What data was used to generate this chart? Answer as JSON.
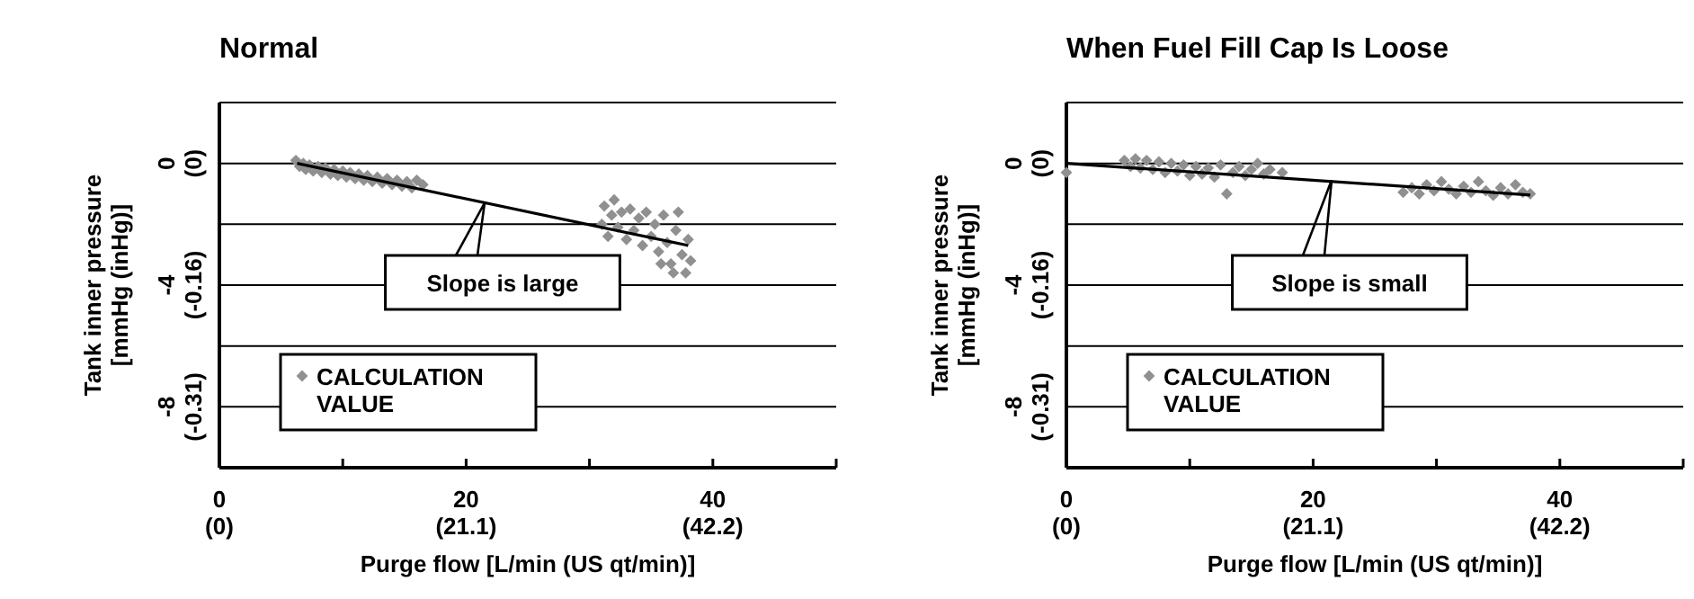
{
  "chart_data": [
    {
      "type": "scatter",
      "title": "Normal",
      "xlabel": "Purge flow [L/min (US qt/min)]",
      "ylabel": "Tank inner pressure\n[mmHg (inHg)]",
      "xlim": [
        0,
        50
      ],
      "ylim": [
        -10,
        2
      ],
      "xticks": [
        0,
        {
          "value": 10,
          "label": null
        },
        20,
        {
          "value": 30,
          "label": null
        },
        40,
        {
          "value": 50,
          "label": null
        }
      ],
      "x2lim": [
        0,
        52.75
      ],
      "x2ticks": [
        {
          "value": 0,
          "label": "(0)"
        },
        {
          "value": 21.1,
          "label": "(21.1)"
        },
        {
          "value": 42.2,
          "label": "(42.2)"
        }
      ],
      "yticks": [
        {
          "value": 2,
          "label": null
        },
        0,
        {
          "value": -2,
          "label": null
        },
        -4,
        {
          "value": -6,
          "label": null
        },
        -8
      ],
      "y2lim": [
        -0.3937,
        0.0787
      ],
      "y2ticks": [
        {
          "value": 0,
          "label": "(0)"
        },
        {
          "value": -0.1575,
          "label": "(-0.16)"
        },
        {
          "value": -0.315,
          "label": "(-0.31)"
        }
      ],
      "grid": "y",
      "legend": "bottom left",
      "annotations": [
        {
          "text": "Slope is large",
          "x": 21.5,
          "y": -1.3
        }
      ],
      "series": [
        {
          "name": "CALCULATION VALUE",
          "color": "#909090",
          "marker": "diamond",
          "x": [
            6.2,
            6.5,
            6.8,
            7.0,
            7.3,
            7.6,
            8.0,
            8.3,
            8.6,
            9.0,
            9.3,
            9.6,
            10.0,
            10.3,
            10.6,
            11.0,
            11.3,
            11.7,
            12.0,
            12.4,
            12.8,
            13.2,
            13.6,
            14.0,
            14.4,
            14.8,
            15.2,
            15.6,
            16.0,
            16.5,
            31.0,
            31.2,
            31.5,
            31.8,
            32.0,
            32.3,
            32.6,
            33.0,
            33.3,
            33.6,
            34.0,
            34.3,
            34.6,
            35.0,
            35.3,
            35.6,
            36.0,
            36.3,
            36.6,
            37.0,
            37.2,
            37.5,
            37.8,
            38.0,
            38.2,
            36.8,
            35.8
          ],
          "values": [
            0.1,
            -0.1,
            0.0,
            -0.2,
            -0.05,
            -0.25,
            -0.1,
            -0.3,
            -0.15,
            -0.35,
            -0.2,
            -0.4,
            -0.25,
            -0.45,
            -0.3,
            -0.5,
            -0.35,
            -0.55,
            -0.4,
            -0.6,
            -0.45,
            -0.65,
            -0.5,
            -0.7,
            -0.55,
            -0.75,
            -0.6,
            -0.8,
            -0.55,
            -0.7,
            -2.0,
            -1.4,
            -2.4,
            -1.7,
            -1.2,
            -2.1,
            -1.6,
            -2.5,
            -1.5,
            -2.2,
            -1.8,
            -2.7,
            -1.6,
            -2.4,
            -2.0,
            -2.9,
            -1.7,
            -2.6,
            -3.3,
            -2.2,
            -1.6,
            -3.0,
            -3.6,
            -2.5,
            -3.2,
            -3.6,
            -3.3
          ]
        },
        {
          "type": "line",
          "color": "#000000",
          "x": [
            6.3,
            38
          ],
          "values": [
            0,
            -2.7
          ]
        }
      ]
    },
    {
      "type": "scatter",
      "title": "When Fuel Fill Cap Is Loose",
      "xlabel": "Purge flow [L/min (US qt/min)]",
      "ylabel": "Tank inner pressure\n[mmHg (inHg)]",
      "xlim": [
        0,
        50
      ],
      "ylim": [
        -10,
        2
      ],
      "xticks": [
        0,
        {
          "value": 10,
          "label": null
        },
        20,
        {
          "value": 30,
          "label": null
        },
        40,
        {
          "value": 50,
          "label": null
        }
      ],
      "x2lim": [
        0,
        52.75
      ],
      "x2ticks": [
        {
          "value": 0,
          "label": "(0)"
        },
        {
          "value": 21.1,
          "label": "(21.1)"
        },
        {
          "value": 42.2,
          "label": "(42.2)"
        }
      ],
      "yticks": [
        {
          "value": 2,
          "label": null
        },
        0,
        {
          "value": -2,
          "label": null
        },
        -4,
        {
          "value": -6,
          "label": null
        },
        -8
      ],
      "y2lim": [
        -0.3937,
        0.0787
      ],
      "y2ticks": [
        {
          "value": 0,
          "label": "(0)"
        },
        {
          "value": -0.1575,
          "label": "(-0.16)"
        },
        {
          "value": -0.315,
          "label": "(-0.31)"
        }
      ],
      "grid": "y",
      "legend": "bottom left",
      "annotations": [
        {
          "text": "Slope is small",
          "x": 21.5,
          "y": -0.55
        }
      ],
      "series": [
        {
          "name": "CALCULATION VALUE",
          "color": "#909090",
          "marker": "diamond",
          "x": [
            0,
            4.7,
            5.2,
            5.6,
            6.0,
            6.5,
            7.0,
            7.5,
            8.0,
            8.5,
            9.0,
            9.5,
            10.0,
            10.5,
            11.0,
            11.5,
            12.0,
            12.5,
            13.0,
            13.5,
            14.0,
            14.5,
            15.0,
            15.5,
            16.0,
            16.5,
            17.5,
            27.3,
            28.0,
            28.6,
            29.2,
            29.8,
            30.4,
            31.0,
            31.6,
            32.2,
            32.8,
            33.4,
            34.0,
            34.6,
            35.2,
            35.8,
            36.4,
            37.0,
            37.6
          ],
          "values": [
            -0.3,
            0.1,
            -0.1,
            0.15,
            -0.15,
            0.1,
            -0.2,
            0.05,
            -0.3,
            0.0,
            -0.25,
            -0.05,
            -0.4,
            -0.1,
            -0.35,
            -0.15,
            -0.45,
            -0.05,
            -1.0,
            -0.3,
            -0.1,
            -0.4,
            -0.2,
            0.0,
            -0.35,
            -0.2,
            -0.3,
            -0.95,
            -0.8,
            -1.0,
            -0.7,
            -0.9,
            -0.6,
            -0.85,
            -1.0,
            -0.75,
            -0.95,
            -0.6,
            -0.9,
            -1.05,
            -0.8,
            -1.0,
            -0.7,
            -0.95,
            -1.0
          ]
        },
        {
          "type": "line",
          "color": "#000000",
          "x": [
            0,
            37.6
          ],
          "values": [
            0,
            -1.04
          ]
        }
      ]
    }
  ]
}
